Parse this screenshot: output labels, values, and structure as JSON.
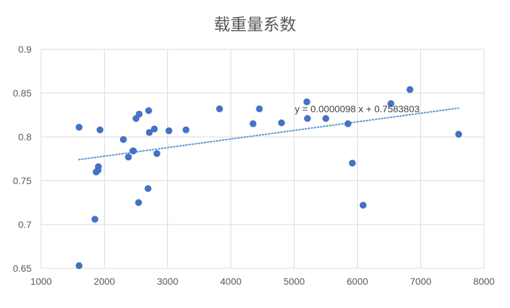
{
  "chart_data": {
    "type": "scatter",
    "title": "载重量系数",
    "xlabel": "",
    "ylabel": "",
    "xlim": [
      1000,
      8000
    ],
    "ylim": [
      0.65,
      0.9
    ],
    "x_ticks": [
      "1000",
      "2000",
      "3000",
      "4000",
      "5000",
      "6000",
      "7000",
      "8000"
    ],
    "y_ticks": [
      "0.65",
      "0.7",
      "0.75",
      "0.8",
      "0.85",
      "0.9"
    ],
    "grid": true,
    "colors": {
      "points": "#4472C4",
      "trendline": "#5B9BD5",
      "grid": "#D9D9D9",
      "text": "#595959"
    },
    "series": [
      {
        "points": [
          [
            1600,
            0.811
          ],
          [
            1600,
            0.653
          ],
          [
            1850,
            0.706
          ],
          [
            1870,
            0.76
          ],
          [
            1900,
            0.762
          ],
          [
            1905,
            0.766
          ],
          [
            1930,
            0.808
          ],
          [
            2300,
            0.797
          ],
          [
            2380,
            0.777
          ],
          [
            2450,
            0.784
          ],
          [
            2460,
            0.784
          ],
          [
            2500,
            0.821
          ],
          [
            2550,
            0.826
          ],
          [
            2540,
            0.725
          ],
          [
            2690,
            0.741
          ],
          [
            2700,
            0.83
          ],
          [
            2710,
            0.805
          ],
          [
            2790,
            0.809
          ],
          [
            2830,
            0.781
          ],
          [
            3020,
            0.807
          ],
          [
            3290,
            0.808
          ],
          [
            3820,
            0.832
          ],
          [
            4350,
            0.815
          ],
          [
            4450,
            0.832
          ],
          [
            4800,
            0.816
          ],
          [
            5200,
            0.84
          ],
          [
            5210,
            0.821
          ],
          [
            5500,
            0.821
          ],
          [
            5850,
            0.815
          ],
          [
            5920,
            0.77
          ],
          [
            6090,
            0.722
          ],
          [
            6530,
            0.838
          ],
          [
            6830,
            0.854
          ],
          [
            7600,
            0.803
          ]
        ]
      }
    ],
    "trendline": {
      "type": "linear",
      "slope": 9.8e-06,
      "intercept": 0.7583803,
      "x_range": [
        1600,
        7600
      ],
      "equation": "y = 0.0000098 x + 0.7583803"
    }
  }
}
